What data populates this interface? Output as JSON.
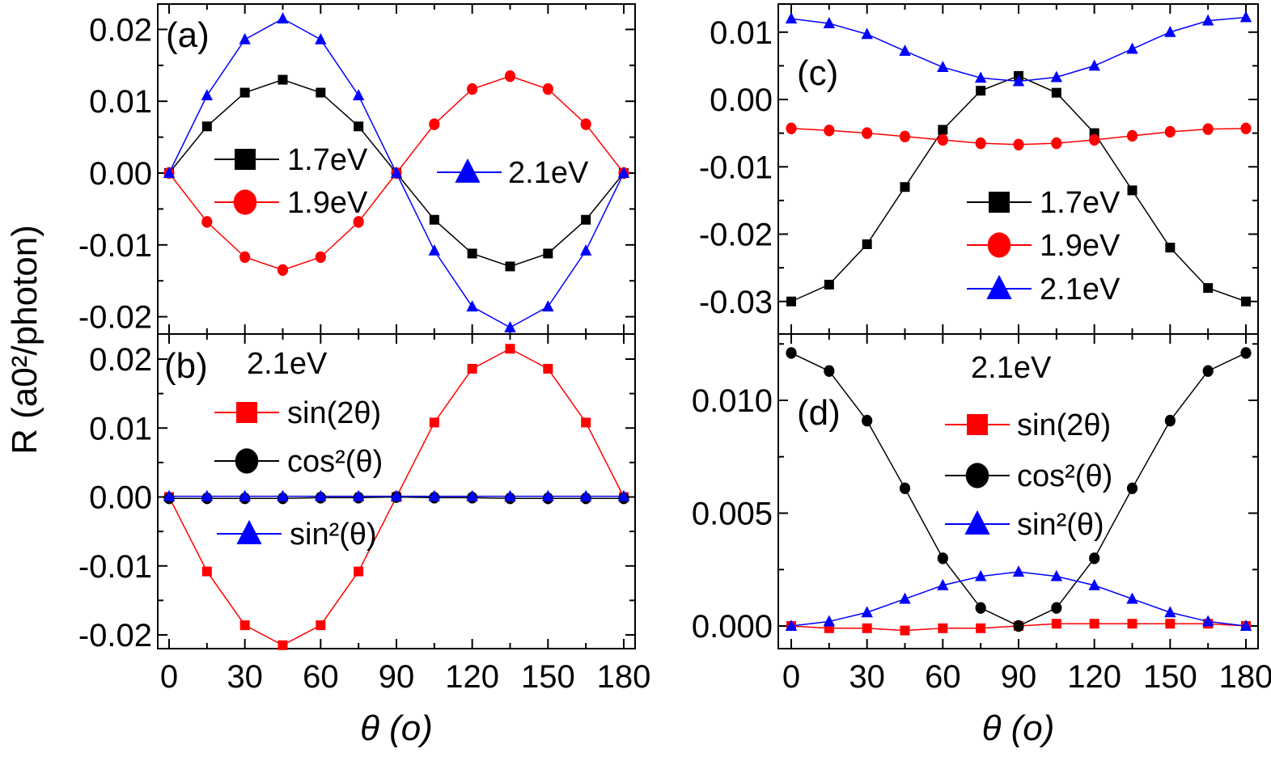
{
  "y_axis_label": "R (a0²/photon)",
  "colors": {
    "1.7eV": "#000000",
    "1.9eV": "#ff0000",
    "2.1eV": "#0000ff",
    "sin(2θ)": "#ff0000",
    "cos²(θ)": "#000000",
    "sin²(θ)": "#0000ff"
  },
  "chart_data": [
    {
      "panel": "(a)",
      "type": "line",
      "xlabel": "θ (o)",
      "ylabel": "R (a0²/photon)",
      "xlim": [
        0,
        180
      ],
      "ylim": [
        -0.022,
        0.024
      ],
      "xticks": [
        0,
        30,
        60,
        90,
        120,
        150,
        180
      ],
      "yticks": [
        "0.02",
        "0.01",
        "0.00",
        "-0.01",
        "-0.02"
      ],
      "x": [
        0,
        15,
        30,
        45,
        60,
        75,
        90,
        105,
        120,
        135,
        150,
        165,
        180
      ],
      "series": [
        {
          "name": "1.7eV",
          "marker": "square",
          "values": [
            0,
            0.0065,
            0.0112,
            0.013,
            0.0112,
            0.0065,
            0,
            -0.0065,
            -0.0112,
            -0.013,
            -0.0112,
            -0.0065,
            0
          ]
        },
        {
          "name": "1.9eV",
          "marker": "circle",
          "values": [
            0,
            -0.0068,
            -0.0117,
            -0.0135,
            -0.0117,
            -0.0068,
            0,
            0.0068,
            0.0117,
            0.0135,
            0.0117,
            0.0068,
            0
          ]
        },
        {
          "name": "2.1eV",
          "marker": "triangle",
          "values": [
            0,
            0.0108,
            0.0186,
            0.0215,
            0.0186,
            0.0108,
            0,
            -0.0108,
            -0.0186,
            -0.0215,
            -0.0186,
            -0.0108,
            0
          ]
        }
      ]
    },
    {
      "panel": "(b)",
      "annotation": "2.1eV",
      "type": "line",
      "xlim": [
        0,
        180
      ],
      "ylim": [
        -0.022,
        0.023
      ],
      "xticks": [
        0,
        30,
        60,
        90,
        120,
        150,
        180
      ],
      "yticks": [
        "0.02",
        "0.01",
        "0.00",
        "-0.01",
        "-0.02"
      ],
      "x": [
        0,
        15,
        30,
        45,
        60,
        75,
        90,
        105,
        120,
        135,
        150,
        165,
        180
      ],
      "series": [
        {
          "name": "sin(2θ)",
          "marker": "square",
          "values": [
            0,
            -0.0108,
            -0.0186,
            -0.0215,
            -0.0186,
            -0.0108,
            0,
            0.0108,
            0.0186,
            0.0215,
            0.0186,
            0.0108,
            0
          ]
        },
        {
          "name": "cos²(θ)",
          "marker": "circle",
          "values": [
            -0.0002,
            -0.0002,
            -0.0002,
            -0.0002,
            -0.0001,
            -0.0001,
            0,
            -0.0001,
            -0.0001,
            -0.0002,
            -0.0002,
            -0.0002,
            -0.0002
          ]
        },
        {
          "name": "sin²(θ)",
          "marker": "triangle",
          "values": [
            0.0001,
            0.0001,
            0.0001,
            0.0001,
            0.0001,
            0.0001,
            0.0001,
            0.0001,
            0.0001,
            0.0001,
            0.0001,
            0.0001,
            0.0001
          ]
        }
      ]
    },
    {
      "panel": "(c)",
      "type": "line",
      "xlim": [
        0,
        180
      ],
      "ylim": [
        -0.034,
        0.0145
      ],
      "xticks": [
        0,
        30,
        60,
        90,
        120,
        150,
        180
      ],
      "yticks": [
        "0.01",
        "0.00",
        "-0.01",
        "-0.02",
        "-0.03"
      ],
      "x": [
        0,
        15,
        30,
        45,
        60,
        75,
        90,
        105,
        120,
        135,
        150,
        165,
        180
      ],
      "series": [
        {
          "name": "1.7eV",
          "marker": "square",
          "values": [
            -0.03,
            -0.0275,
            -0.0215,
            -0.013,
            -0.0045,
            0.0013,
            0.0035,
            0.001,
            -0.005,
            -0.0135,
            -0.022,
            -0.028,
            -0.03
          ]
        },
        {
          "name": "1.9eV",
          "marker": "circle",
          "values": [
            -0.0043,
            -0.0046,
            -0.005,
            -0.0055,
            -0.006,
            -0.0065,
            -0.0067,
            -0.0065,
            -0.006,
            -0.0054,
            -0.0048,
            -0.0044,
            -0.0043
          ]
        },
        {
          "name": "2.1eV",
          "marker": "triangle",
          "values": [
            0.012,
            0.0113,
            0.0097,
            0.0072,
            0.0048,
            0.0032,
            0.0027,
            0.0033,
            0.005,
            0.0075,
            0.01,
            0.0117,
            0.0122
          ]
        }
      ]
    },
    {
      "panel": "(d)",
      "annotation": "2.1eV",
      "type": "line",
      "xlabel": "θ (o)",
      "xlim": [
        0,
        180
      ],
      "ylim": [
        -0.001,
        0.013
      ],
      "xticks": [
        0,
        30,
        60,
        90,
        120,
        150,
        180
      ],
      "yticks": [
        "0.010",
        "0.005",
        "0.000"
      ],
      "x": [
        0,
        15,
        30,
        45,
        60,
        75,
        90,
        105,
        120,
        135,
        150,
        165,
        180
      ],
      "series": [
        {
          "name": "sin(2θ)",
          "marker": "square",
          "values": [
            0,
            -0.0001,
            -0.0001,
            -0.0002,
            -0.0001,
            -0.0001,
            0,
            0.0001,
            0.0001,
            0.0001,
            0.0001,
            0.0001,
            0
          ]
        },
        {
          "name": "cos²(θ)",
          "marker": "circle",
          "values": [
            0.0121,
            0.0113,
            0.0091,
            0.0061,
            0.003,
            0.0008,
            0,
            0.0008,
            0.003,
            0.0061,
            0.0091,
            0.0113,
            0.0121
          ]
        },
        {
          "name": "sin²(θ)",
          "marker": "triangle",
          "values": [
            0,
            0.0002,
            0.0006,
            0.0012,
            0.0018,
            0.0022,
            0.0024,
            0.0022,
            0.0018,
            0.0012,
            0.0006,
            0.0002,
            0
          ]
        }
      ]
    }
  ]
}
